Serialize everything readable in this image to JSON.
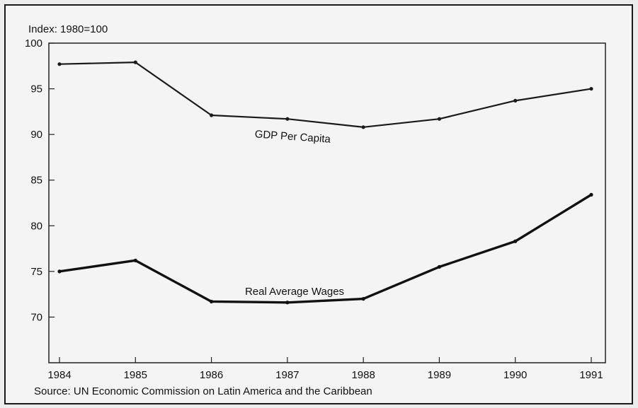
{
  "chart_data": {
    "type": "line",
    "ylabel": "Index: 1980=100",
    "source": "Source: UN Economic Commission on Latin America and the Caribbean",
    "x": [
      "1984",
      "1985",
      "1986",
      "1987",
      "1988",
      "1989",
      "1990",
      "1991"
    ],
    "y_ticks": [
      70,
      75,
      80,
      85,
      90,
      95,
      100
    ],
    "ylim": [
      65,
      100
    ],
    "grid": false,
    "series": [
      {
        "name": "GDP Per Capita",
        "values": [
          97.7,
          97.9,
          92.1,
          91.7,
          90.8,
          91.7,
          93.7,
          95.0
        ],
        "color": "#1a1a1a"
      },
      {
        "name": "Real Average Wages",
        "values": [
          75.0,
          76.2,
          71.7,
          71.6,
          72.0,
          75.5,
          78.3,
          83.4
        ],
        "color": "#111111"
      }
    ]
  }
}
